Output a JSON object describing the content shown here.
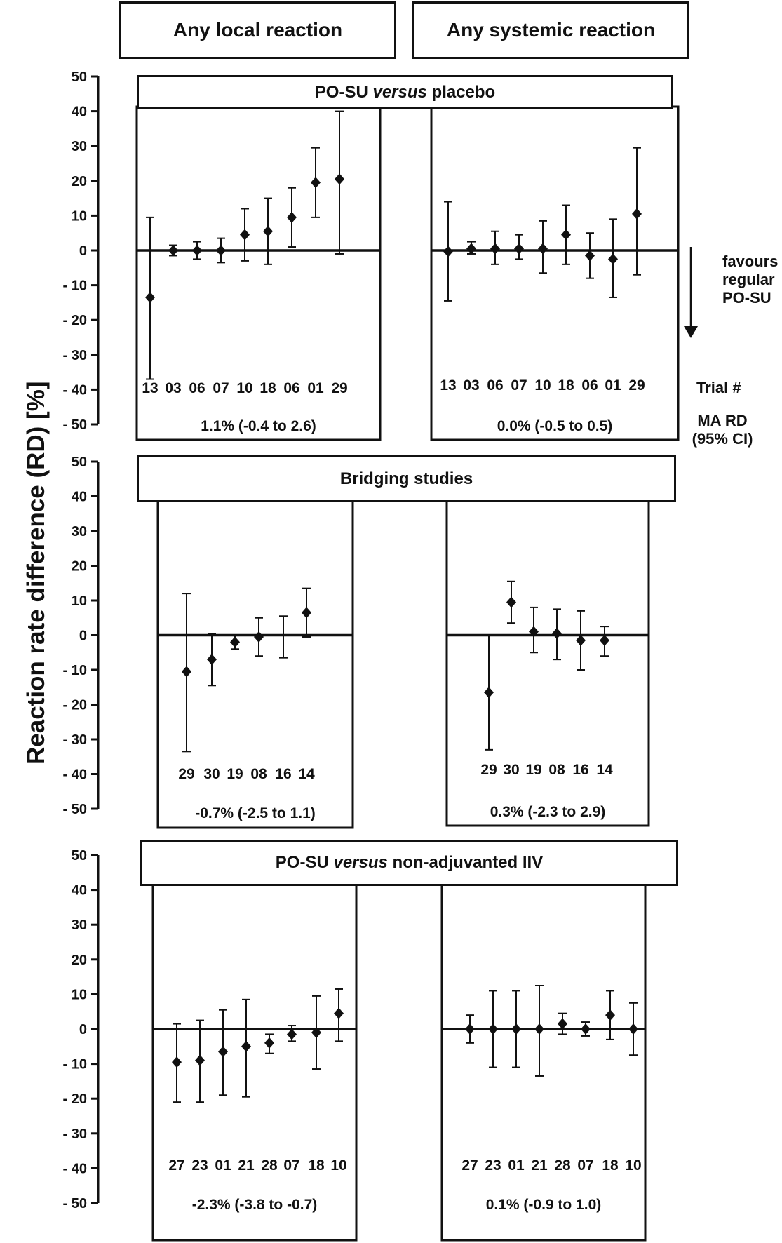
{
  "headers": {
    "local": "Any local reaction",
    "systemic": "Any systemic reaction"
  },
  "y_axis_label": "Reaction rate difference (RD) [%]",
  "side_labels": {
    "favours_line1": "favours",
    "favours_line2": "regular",
    "favours_line3": "PO-SU",
    "trial": "Trial #",
    "ma_rd_line1": "MA RD",
    "ma_rd_line2": "(95% CI)"
  },
  "section_titles": {
    "s1_pre": "PO-SU ",
    "s1_em": "versus",
    "s1_post": " placebo",
    "s2": "Bridging studies",
    "s3_pre": "PO-SU ",
    "s3_em": "versus",
    "s3_post": " non-adjuvanted IIV"
  },
  "chart_data": [
    {
      "type": "scatter",
      "section": "PO-SU versus placebo",
      "column": "Any local reaction",
      "ylabel": "Reaction rate difference (RD) [%]",
      "ylim": [
        -50,
        50
      ],
      "yticks": [
        50,
        40,
        30,
        20,
        10,
        0,
        -10,
        -20,
        -30,
        -40,
        -50
      ],
      "categories": [
        "13",
        "03",
        "06",
        "07",
        "10",
        "18",
        "06",
        "01",
        "29"
      ],
      "values": [
        -13.5,
        0,
        0,
        0,
        4.5,
        5.5,
        9.5,
        19.5,
        20.5
      ],
      "ci_low": [
        -37,
        -1.5,
        -2.5,
        -3.5,
        -3,
        -4,
        1,
        9.5,
        -1
      ],
      "ci_high": [
        9.5,
        1.5,
        2.5,
        3.5,
        12,
        15,
        18,
        29.5,
        40
      ],
      "summary": "1.1% (-0.4 to 2.6)"
    },
    {
      "type": "scatter",
      "section": "PO-SU versus placebo",
      "column": "Any systemic reaction",
      "ylim": [
        -50,
        50
      ],
      "categories": [
        "13",
        "03",
        "06",
        "07",
        "10",
        "18",
        "06",
        "01",
        "29"
      ],
      "values": [
        -0.3,
        0.5,
        0.5,
        0.5,
        0.5,
        4.5,
        -1.5,
        -2.5,
        10.5
      ],
      "ci_low": [
        -14.5,
        -1,
        -4,
        -2.5,
        -6.5,
        -4,
        -8,
        -13.5,
        -7
      ],
      "ci_high": [
        14,
        2.5,
        5.5,
        4.5,
        8.5,
        13,
        5,
        9,
        29.5
      ],
      "summary": "0.0% (-0.5 to 0.5)"
    },
    {
      "type": "scatter",
      "section": "Bridging studies",
      "column": "Any local reaction",
      "ylim": [
        -50,
        50
      ],
      "categories": [
        "29",
        "30",
        "19",
        "08",
        "16",
        "14"
      ],
      "values": [
        -10.5,
        -7,
        -2,
        -0.5,
        null,
        6.5
      ],
      "ci_low": [
        -33.5,
        -14.5,
        -4,
        -6,
        -6.5,
        -0.5
      ],
      "ci_high": [
        12,
        0.5,
        0,
        5,
        5.5,
        13.5
      ],
      "summary": "-0.7% (-2.5 to 1.1)"
    },
    {
      "type": "scatter",
      "section": "Bridging studies",
      "column": "Any systemic reaction",
      "ylim": [
        -50,
        50
      ],
      "categories": [
        "29",
        "30",
        "19",
        "08",
        "16",
        "14"
      ],
      "values": [
        -16.5,
        9.5,
        1,
        0.5,
        -1.5,
        -1.5
      ],
      "ci_low": [
        -33,
        3.5,
        -5,
        -7,
        -10,
        -6
      ],
      "ci_high": [
        0,
        15.5,
        8,
        7.5,
        7,
        2.5
      ],
      "summary": "0.3% (-2.3 to 2.9)"
    },
    {
      "type": "scatter",
      "section": "PO-SU versus non-adjuvanted IIV",
      "column": "Any local reaction",
      "ylim": [
        -50,
        50
      ],
      "categories": [
        "27",
        "23",
        "01",
        "21",
        "28",
        "07",
        "18",
        "10"
      ],
      "values": [
        -9.5,
        -9,
        -6.5,
        -5,
        -4,
        -1.5,
        -1,
        4.5
      ],
      "ci_low": [
        -21,
        -21,
        -19,
        -19.5,
        -7,
        -3.5,
        -11.5,
        -3.5
      ],
      "ci_high": [
        1.5,
        2.5,
        5.5,
        8.5,
        -1.5,
        1,
        9.5,
        11.5
      ],
      "summary": "-2.3% (-3.8 to -0.7)"
    },
    {
      "type": "scatter",
      "section": "PO-SU versus non-adjuvanted IIV",
      "column": "Any systemic reaction",
      "ylim": [
        -50,
        50
      ],
      "categories": [
        "27",
        "23",
        "01",
        "21",
        "28",
        "07",
        "18",
        "10"
      ],
      "values": [
        0,
        0,
        0,
        0,
        1.5,
        0,
        4,
        0
      ],
      "ci_low": [
        -4,
        -11,
        -11,
        -13.5,
        -1.5,
        -2,
        -3,
        -7.5
      ],
      "ci_high": [
        4,
        11,
        11,
        12.5,
        4.5,
        2,
        11,
        7.5
      ],
      "summary": "0.1% (-0.9 to 1.0)"
    }
  ]
}
